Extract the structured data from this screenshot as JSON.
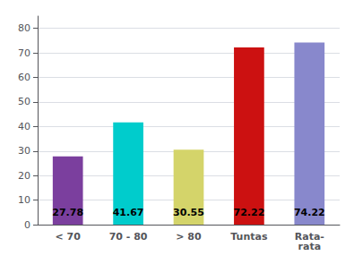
{
  "chart_data": {
    "type": "bar",
    "categories": [
      "< 70",
      "70 - 80",
      "> 80",
      "Tuntas",
      "Rata-\nrata"
    ],
    "values": [
      27.78,
      41.67,
      30.55,
      72.22,
      74.22
    ],
    "colors": [
      "#7B3F9E",
      "#00CCCC",
      "#D4D46A",
      "#CC1111",
      "#8888CC"
    ],
    "ylim": [
      0,
      85
    ],
    "yticks": [
      0,
      10,
      20,
      30,
      40,
      50,
      60,
      70,
      80
    ],
    "grid": true,
    "data_labels": true
  }
}
